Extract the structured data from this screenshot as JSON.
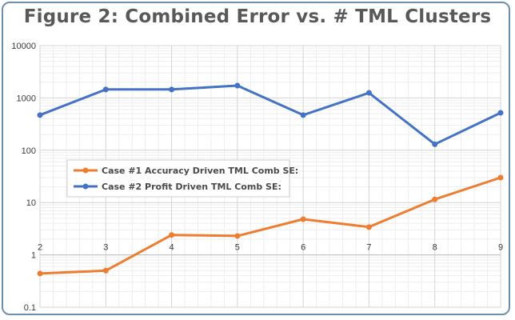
{
  "chart_data": {
    "type": "line",
    "title": "Figure 2: Combined Error vs. # TML Clusters",
    "xlabel": "",
    "ylabel": "",
    "x": [
      2,
      3,
      4,
      5,
      6,
      7,
      8,
      9
    ],
    "y_scale": "log",
    "ylim": [
      0.1,
      10000
    ],
    "y_ticks": [
      "0.1",
      "1",
      "10",
      "100",
      "1000",
      "10000"
    ],
    "grid": true,
    "legend_position": "left-middle",
    "series": [
      {
        "name": "Case #1 Accuracy Driven TML Comb SE:",
        "color": "#ed7d31",
        "values": [
          0.44,
          0.5,
          2.4,
          2.3,
          4.8,
          3.4,
          11.5,
          30
        ]
      },
      {
        "name": "Case #2 Profit Driven TML Comb SE:",
        "color": "#4472c4",
        "values": [
          470,
          1450,
          1450,
          1720,
          470,
          1250,
          130,
          520
        ]
      }
    ]
  }
}
